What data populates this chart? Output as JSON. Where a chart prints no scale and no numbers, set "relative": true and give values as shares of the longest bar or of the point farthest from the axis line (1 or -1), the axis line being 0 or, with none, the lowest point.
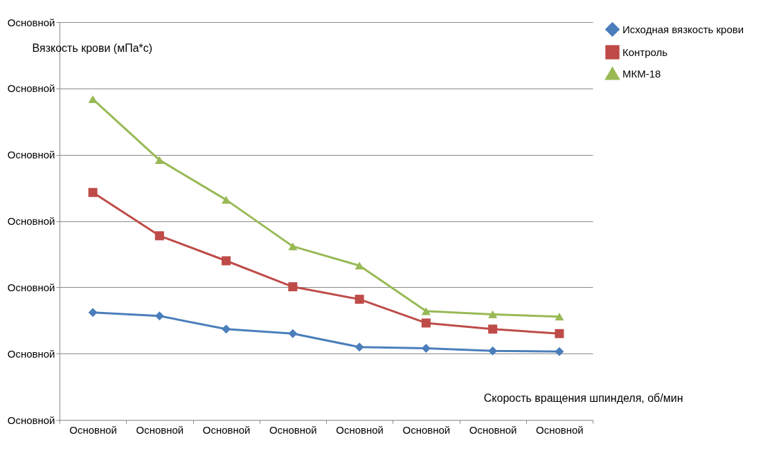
{
  "chart_data": {
    "type": "line",
    "relative": true,
    "xlabel": "Скорость вращения шпинделя, об/мин",
    "ylabel": "Вязкость крови (мПа*с)",
    "categories": [
      "Основной",
      "Основной",
      "Основной",
      "Основной",
      "Основной",
      "Основной",
      "Основной",
      "Основной"
    ],
    "annotations": [
      "Основной",
      "Основной",
      "Основной",
      "Основной",
      "Основной",
      "Основной",
      "Основной"
    ],
    "ylim": [
      0,
      1.24
    ],
    "grid": "y",
    "legend": "right",
    "series": [
      {
        "name": "Исходная вязкость крови",
        "color": "#4a7ebb",
        "marker": "diamond",
        "values": [
          0.335,
          0.324,
          0.283,
          0.269,
          0.227,
          0.223,
          0.215,
          0.213
        ]
      },
      {
        "name": "Контроль",
        "color": "#be4b48",
        "marker": "square",
        "values": [
          0.709,
          0.574,
          0.496,
          0.415,
          0.376,
          0.302,
          0.283,
          0.269
        ]
      },
      {
        "name": "МКМ-18",
        "color": "#98b954",
        "marker": "triangle",
        "values": [
          1.0,
          0.81,
          0.686,
          0.541,
          0.481,
          0.339,
          0.329,
          0.322
        ]
      }
    ]
  }
}
